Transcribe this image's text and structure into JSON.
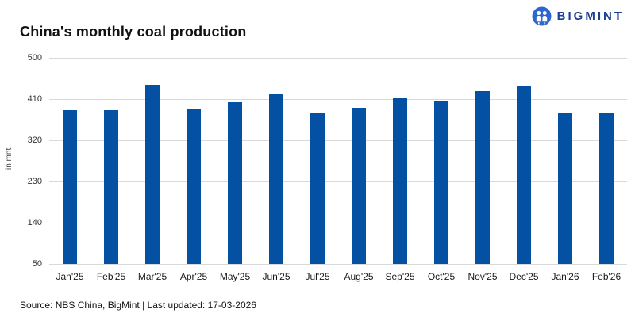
{
  "header": {
    "title": "China's monthly coal production"
  },
  "brand": {
    "name": "BIGMINT",
    "icon": "bigmint-people-icon",
    "text_color": "#1c3e94",
    "icon_color": "#2e66cf"
  },
  "chart_data": {
    "type": "bar",
    "title": "China's monthly coal production",
    "categories": [
      "Jan'25",
      "Feb'25",
      "Mar'25",
      "Apr'25",
      "May'25",
      "Jun'25",
      "Jul'25",
      "Aug'25",
      "Sep'25",
      "Oct'25",
      "Nov'25",
      "Dec'25",
      "Jan'26",
      "Feb'26"
    ],
    "values": [
      385,
      385,
      441,
      390,
      403,
      422,
      380,
      391,
      411,
      405,
      427,
      438,
      380,
      380
    ],
    "xlabel": "",
    "ylabel": "in mnt",
    "ylim": [
      50,
      500
    ],
    "yticks": [
      500,
      410,
      320,
      230,
      140,
      50
    ],
    "grid": true,
    "legend": false,
    "bar_color": "#0451a3",
    "gridline_color": "#d9d9d9"
  },
  "footer": {
    "source": "Source: NBS China, BigMint | Last updated: 17-03-2026"
  }
}
